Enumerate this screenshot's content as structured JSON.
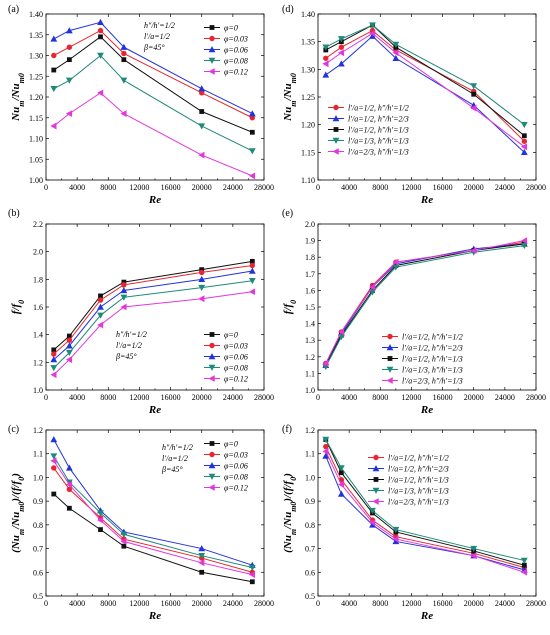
{
  "figure": {
    "panels": [
      "a",
      "b",
      "c",
      "d",
      "e",
      "f"
    ]
  },
  "chart_data": [
    {
      "id": "a",
      "type": "line",
      "panel_label": "(a)",
      "xlabel": "Re",
      "ylabel": "Nu_m / Nu_m0",
      "ylabel_main": "Nu",
      "ylabel_sub": "m",
      "ylabel_div": "/Nu",
      "ylabel_sub2": "m0",
      "xlim": [
        0,
        28000
      ],
      "ylim": [
        1.0,
        1.4
      ],
      "xticks": [
        0,
        4000,
        8000,
        12000,
        16000,
        20000,
        24000,
        28000
      ],
      "yticks": [
        1.0,
        1.05,
        1.1,
        1.15,
        1.2,
        1.25,
        1.3,
        1.35,
        1.4
      ],
      "ydecimals": 2,
      "x": [
        1000,
        3000,
        7000,
        10000,
        20000,
        26500
      ],
      "notes": [
        "h″/h′=1/2",
        "l′/a=1/2",
        "β=45°"
      ],
      "legend_position": "top-right",
      "series": [
        {
          "name": "φ=0",
          "color": "#111111",
          "marker": "square",
          "values": [
            1.265,
            1.29,
            1.345,
            1.29,
            1.165,
            1.115
          ]
        },
        {
          "name": "φ=0.03",
          "color": "#e8262f",
          "marker": "circle",
          "values": [
            1.3,
            1.32,
            1.36,
            1.305,
            1.21,
            1.15
          ]
        },
        {
          "name": "φ=0.06",
          "color": "#2233dd",
          "marker": "triangle-up",
          "values": [
            1.34,
            1.36,
            1.38,
            1.32,
            1.22,
            1.16
          ]
        },
        {
          "name": "φ=0.08",
          "color": "#1e8a78",
          "marker": "triangle-down",
          "values": [
            1.22,
            1.24,
            1.3,
            1.24,
            1.13,
            1.07
          ]
        },
        {
          "name": "φ=0.12",
          "color": "#e436dd",
          "marker": "triangle-left",
          "values": [
            1.13,
            1.16,
            1.21,
            1.16,
            1.06,
            1.01
          ]
        }
      ]
    },
    {
      "id": "d",
      "type": "line",
      "panel_label": "(d)",
      "xlabel": "Re",
      "ylabel": "Nu_m / Nu_m0",
      "ylabel_main": "Nu",
      "ylabel_sub": "m",
      "ylabel_div": "/Nu",
      "ylabel_sub2": "m0",
      "xlim": [
        0,
        28000
      ],
      "ylim": [
        1.1,
        1.4
      ],
      "xticks": [
        0,
        4000,
        8000,
        12000,
        16000,
        20000,
        24000,
        28000
      ],
      "yticks": [
        1.1,
        1.15,
        1.2,
        1.25,
        1.3,
        1.35,
        1.4
      ],
      "ydecimals": 2,
      "x": [
        1000,
        3000,
        7000,
        10000,
        20000,
        26500
      ],
      "notes": [],
      "legend_position": "lower-left",
      "series": [
        {
          "name": "l′/a=1/2, h″/h′=1/2",
          "color": "#e8262f",
          "marker": "circle",
          "values": [
            1.32,
            1.34,
            1.37,
            1.335,
            1.26,
            1.17
          ]
        },
        {
          "name": "l′/a=1/2, h″/h′=2/3",
          "color": "#2233dd",
          "marker": "triangle-up",
          "values": [
            1.29,
            1.31,
            1.36,
            1.32,
            1.235,
            1.15
          ]
        },
        {
          "name": "l′/a=1/2, h″/h′=1/3",
          "color": "#111111",
          "marker": "square",
          "values": [
            1.335,
            1.35,
            1.38,
            1.34,
            1.255,
            1.18
          ]
        },
        {
          "name": "l′/a=1/3, h″/h′=1/3",
          "color": "#1e8a78",
          "marker": "triangle-down",
          "values": [
            1.34,
            1.355,
            1.38,
            1.345,
            1.27,
            1.2
          ]
        },
        {
          "name": "l′/a=2/3, h″/h′=1/3",
          "color": "#e436dd",
          "marker": "triangle-left",
          "values": [
            1.31,
            1.33,
            1.365,
            1.33,
            1.23,
            1.16
          ]
        }
      ]
    },
    {
      "id": "b",
      "type": "line",
      "panel_label": "(b)",
      "xlabel": "Re",
      "ylabel": "f/f_0",
      "ylabel_main": "f/f",
      "ylabel_sub": "0",
      "ylabel_div": "",
      "ylabel_sub2": "",
      "xlim": [
        0,
        28000
      ],
      "ylim": [
        1.0,
        2.2
      ],
      "xticks": [
        0,
        4000,
        8000,
        12000,
        16000,
        20000,
        24000,
        28000
      ],
      "yticks": [
        1.0,
        1.2,
        1.4,
        1.6,
        1.8,
        2.0,
        2.2
      ],
      "ydecimals": 1,
      "x": [
        1000,
        3000,
        7000,
        10000,
        20000,
        26500
      ],
      "notes": [
        "h″/h′=1/2",
        "l′/a=1/2",
        "β=45°"
      ],
      "legend_position": "lower-right",
      "series": [
        {
          "name": "φ=0",
          "color": "#111111",
          "marker": "square",
          "values": [
            1.29,
            1.39,
            1.68,
            1.78,
            1.87,
            1.93
          ]
        },
        {
          "name": "φ=0.03",
          "color": "#e8262f",
          "marker": "circle",
          "values": [
            1.26,
            1.36,
            1.65,
            1.76,
            1.85,
            1.9
          ]
        },
        {
          "name": "φ=0.06",
          "color": "#2233dd",
          "marker": "triangle-up",
          "values": [
            1.22,
            1.32,
            1.6,
            1.72,
            1.8,
            1.86
          ]
        },
        {
          "name": "φ=0.08",
          "color": "#1e8a78",
          "marker": "triangle-down",
          "values": [
            1.16,
            1.27,
            1.54,
            1.67,
            1.74,
            1.79
          ]
        },
        {
          "name": "φ=0.12",
          "color": "#e436dd",
          "marker": "triangle-left",
          "values": [
            1.11,
            1.22,
            1.47,
            1.6,
            1.66,
            1.71
          ]
        }
      ]
    },
    {
      "id": "e",
      "type": "line",
      "panel_label": "(e)",
      "xlabel": "Re",
      "ylabel": "f/f_0",
      "ylabel_main": "f/f",
      "ylabel_sub": "0",
      "ylabel_div": "",
      "ylabel_sub2": "",
      "xlim": [
        0,
        28000
      ],
      "ylim": [
        1.0,
        2.0
      ],
      "xticks": [
        0,
        4000,
        8000,
        12000,
        16000,
        20000,
        24000,
        28000
      ],
      "yticks": [
        1.0,
        1.1,
        1.2,
        1.3,
        1.4,
        1.5,
        1.6,
        1.7,
        1.8,
        1.9,
        2.0
      ],
      "ydecimals": 1,
      "x": [
        1000,
        3000,
        7000,
        10000,
        20000,
        26500
      ],
      "notes": [],
      "legend_position": "lower-right",
      "series": [
        {
          "name": "l′/a=1/2, h″/h′=1/2",
          "color": "#e8262f",
          "marker": "circle",
          "values": [
            1.16,
            1.35,
            1.63,
            1.77,
            1.84,
            1.89
          ]
        },
        {
          "name": "l′/a=1/2, h″/h′=2/3",
          "color": "#2233dd",
          "marker": "triangle-up",
          "values": [
            1.15,
            1.34,
            1.62,
            1.76,
            1.85,
            1.88
          ]
        },
        {
          "name": "l′/a=1/2, h″/h′=1/3",
          "color": "#111111",
          "marker": "square",
          "values": [
            1.15,
            1.33,
            1.6,
            1.75,
            1.84,
            1.88
          ]
        },
        {
          "name": "l′/a=1/3, h″/h′=1/3",
          "color": "#1e8a78",
          "marker": "triangle-down",
          "values": [
            1.14,
            1.32,
            1.59,
            1.74,
            1.83,
            1.87
          ]
        },
        {
          "name": "l′/a=2/3, h″/h′=1/3",
          "color": "#e436dd",
          "marker": "triangle-left",
          "values": [
            1.16,
            1.35,
            1.62,
            1.77,
            1.84,
            1.9
          ]
        }
      ]
    },
    {
      "id": "c",
      "type": "line",
      "panel_label": "(c)",
      "xlabel": "Re",
      "ylabel": "(Nu_m/Nu_m0)/(f/f_0)",
      "ylabel_main": "(Nu",
      "ylabel_sub": "m",
      "ylabel_div": "/Nu",
      "ylabel_sub2": "m0",
      "ylabel_tail": ")/(f/f",
      "ylabel_sub3": "0",
      "ylabel_end": ")",
      "xlim": [
        0,
        28000
      ],
      "ylim": [
        0.5,
        1.2
      ],
      "xticks": [
        0,
        4000,
        8000,
        12000,
        16000,
        20000,
        24000,
        28000
      ],
      "yticks": [
        0.5,
        0.6,
        0.7,
        0.8,
        0.9,
        1.0,
        1.1,
        1.2
      ],
      "ydecimals": 1,
      "x": [
        1000,
        3000,
        7000,
        10000,
        20000,
        26500
      ],
      "notes": [
        "h″/h′=1/2",
        "l′/a=1/2",
        "β=45°"
      ],
      "legend_position": "top-right",
      "series": [
        {
          "name": "φ=0",
          "color": "#111111",
          "marker": "square",
          "values": [
            0.93,
            0.87,
            0.78,
            0.71,
            0.6,
            0.56
          ]
        },
        {
          "name": "φ=0.03",
          "color": "#e8262f",
          "marker": "circle",
          "values": [
            1.04,
            0.95,
            0.83,
            0.74,
            0.66,
            0.6
          ]
        },
        {
          "name": "φ=0.06",
          "color": "#2233dd",
          "marker": "triangle-up",
          "values": [
            1.16,
            1.04,
            0.86,
            0.77,
            0.7,
            0.63
          ]
        },
        {
          "name": "φ=0.08",
          "color": "#1e8a78",
          "marker": "triangle-down",
          "values": [
            1.09,
            0.98,
            0.85,
            0.76,
            0.67,
            0.62
          ]
        },
        {
          "name": "φ=0.12",
          "color": "#e436dd",
          "marker": "triangle-left",
          "values": [
            1.07,
            0.97,
            0.82,
            0.73,
            0.64,
            0.59
          ]
        }
      ]
    },
    {
      "id": "f",
      "type": "line",
      "panel_label": "(f)",
      "xlabel": "Re",
      "ylabel": "(Nu_m/Nu_m0)/(f/f_0)",
      "ylabel_main": "(Nu",
      "ylabel_sub": "m",
      "ylabel_div": "/Nu",
      "ylabel_sub2": "m0",
      "ylabel_tail": ")/(f/f",
      "ylabel_sub3": "0",
      "ylabel_end": ")",
      "xlim": [
        0,
        28000
      ],
      "ylim": [
        0.5,
        1.2
      ],
      "xticks": [
        0,
        4000,
        8000,
        12000,
        16000,
        20000,
        24000,
        28000
      ],
      "yticks": [
        0.5,
        0.6,
        0.7,
        0.8,
        0.9,
        1.0,
        1.1,
        1.2
      ],
      "ydecimals": 1,
      "x": [
        1000,
        3000,
        7000,
        10000,
        20000,
        26500
      ],
      "notes": [],
      "legend_position": "top-right",
      "series": [
        {
          "name": "l′/a=1/2, h″/h′=1/2",
          "color": "#e8262f",
          "marker": "circle",
          "values": [
            1.13,
            0.99,
            0.82,
            0.75,
            0.68,
            0.62
          ]
        },
        {
          "name": "l′/a=1/2, h″/h′=2/3",
          "color": "#2233dd",
          "marker": "triangle-up",
          "values": [
            1.09,
            0.93,
            0.8,
            0.73,
            0.67,
            0.61
          ]
        },
        {
          "name": "l′/a=1/2, h″/h′=1/3",
          "color": "#111111",
          "marker": "square",
          "values": [
            1.16,
            1.02,
            0.85,
            0.77,
            0.69,
            0.63
          ]
        },
        {
          "name": "l′/a=1/3, h″/h′=1/3",
          "color": "#1e8a78",
          "marker": "triangle-down",
          "values": [
            1.16,
            1.04,
            0.86,
            0.78,
            0.7,
            0.65
          ]
        },
        {
          "name": "l′/a=2/3, h″/h′=1/3",
          "color": "#e436dd",
          "marker": "triangle-left",
          "values": [
            1.11,
            0.97,
            0.81,
            0.74,
            0.67,
            0.6
          ]
        }
      ]
    }
  ]
}
